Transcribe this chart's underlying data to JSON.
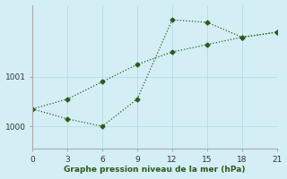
{
  "line_color": "#2d5a1b",
  "bg_color": "#d4eef5",
  "grid_color": "#b8dce8",
  "xlabel": "Graphe pression niveau de la mer (hPa)",
  "xticks": [
    0,
    3,
    6,
    9,
    12,
    15,
    18,
    21
  ],
  "yticks": [
    1000,
    1001
  ],
  "ylim": [
    999.55,
    1002.45
  ],
  "xlim": [
    0,
    21
  ],
  "line1_x": [
    0,
    3,
    6,
    9,
    12,
    15,
    18,
    21
  ],
  "line1_y": [
    1000.35,
    1000.15,
    1000.0,
    1000.55,
    1002.15,
    1002.1,
    1001.8,
    1001.9
  ],
  "line2_x": [
    0,
    3,
    6,
    9,
    12,
    15,
    18,
    21
  ],
  "line2_y": [
    1000.35,
    1000.55,
    1000.9,
    1001.25,
    1001.5,
    1001.65,
    1001.8,
    1001.9
  ]
}
